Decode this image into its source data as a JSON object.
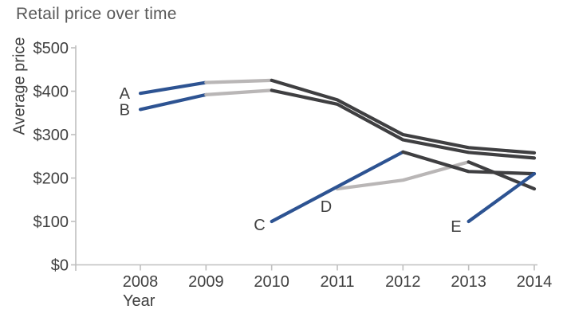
{
  "colors": {
    "blue": "#2d5392",
    "dark": "#3f3f41",
    "light_gray": "#b9b6b6",
    "axis": "#bfbfbf",
    "tick_text": "#404040",
    "title_text": "#595959"
  },
  "chart_data": {
    "type": "line",
    "title": "Retail price over time",
    "xlabel": "Year",
    "ylabel": "Average price",
    "x_ticks": [
      2008,
      2009,
      2010,
      2011,
      2012,
      2013,
      2014
    ],
    "x_tick_labels": [
      "2008",
      "2009",
      "2010",
      "2011",
      "2012",
      "2013",
      "2014"
    ],
    "y_ticks": [
      0,
      100,
      200,
      300,
      400,
      500
    ],
    "y_tick_labels": [
      "$0",
      "$100",
      "$200",
      "$300",
      "$400",
      "$500"
    ],
    "ylim": [
      0,
      500
    ],
    "grid": false,
    "legend": "inline-labels",
    "series": [
      {
        "name": "A",
        "start_year": 2008,
        "values": [
          395,
          420,
          425,
          380,
          300,
          270,
          258
        ],
        "segments": [
          {
            "from": 2008,
            "to": 2009,
            "color": "blue"
          },
          {
            "from": 2009,
            "to": 2010,
            "color": "light_gray"
          },
          {
            "from": 2010,
            "to": 2014,
            "color": "dark"
          }
        ],
        "label": {
          "text": "A",
          "anchor": "end",
          "dx": -13,
          "dy": 7
        }
      },
      {
        "name": "B",
        "start_year": 2008,
        "values": [
          358,
          392,
          402,
          370,
          288,
          259,
          246
        ],
        "segments": [
          {
            "from": 2008,
            "to": 2009,
            "color": "blue"
          },
          {
            "from": 2009,
            "to": 2010,
            "color": "light_gray"
          },
          {
            "from": 2010,
            "to": 2014,
            "color": "dark"
          }
        ],
        "label": {
          "text": "B",
          "anchor": "end",
          "dx": -13,
          "dy": 7
        }
      },
      {
        "name": "C",
        "start_year": 2010,
        "values": [
          100,
          180,
          260,
          215,
          210
        ],
        "segments": [
          {
            "from": 2010,
            "to": 2012,
            "color": "blue"
          },
          {
            "from": 2012,
            "to": 2014,
            "color": "dark"
          }
        ],
        "label": {
          "text": "C",
          "anchor": "end",
          "dx": -8,
          "dy": 11
        }
      },
      {
        "name": "D",
        "start_year": 2011,
        "values": [
          175,
          195,
          237,
          175
        ],
        "segments": [
          {
            "from": 2011,
            "to": 2013,
            "color": "light_gray"
          },
          {
            "from": 2013,
            "to": 2014,
            "color": "dark"
          }
        ],
        "label": {
          "text": "D",
          "anchor": "middle",
          "dx": -14,
          "dy": 29
        }
      },
      {
        "name": "E",
        "start_year": 2013,
        "values": [
          100,
          210
        ],
        "segments": [
          {
            "from": 2013,
            "to": 2014,
            "color": "blue"
          }
        ],
        "label": {
          "text": "E",
          "anchor": "end",
          "dx": -9,
          "dy": 13
        }
      }
    ]
  }
}
